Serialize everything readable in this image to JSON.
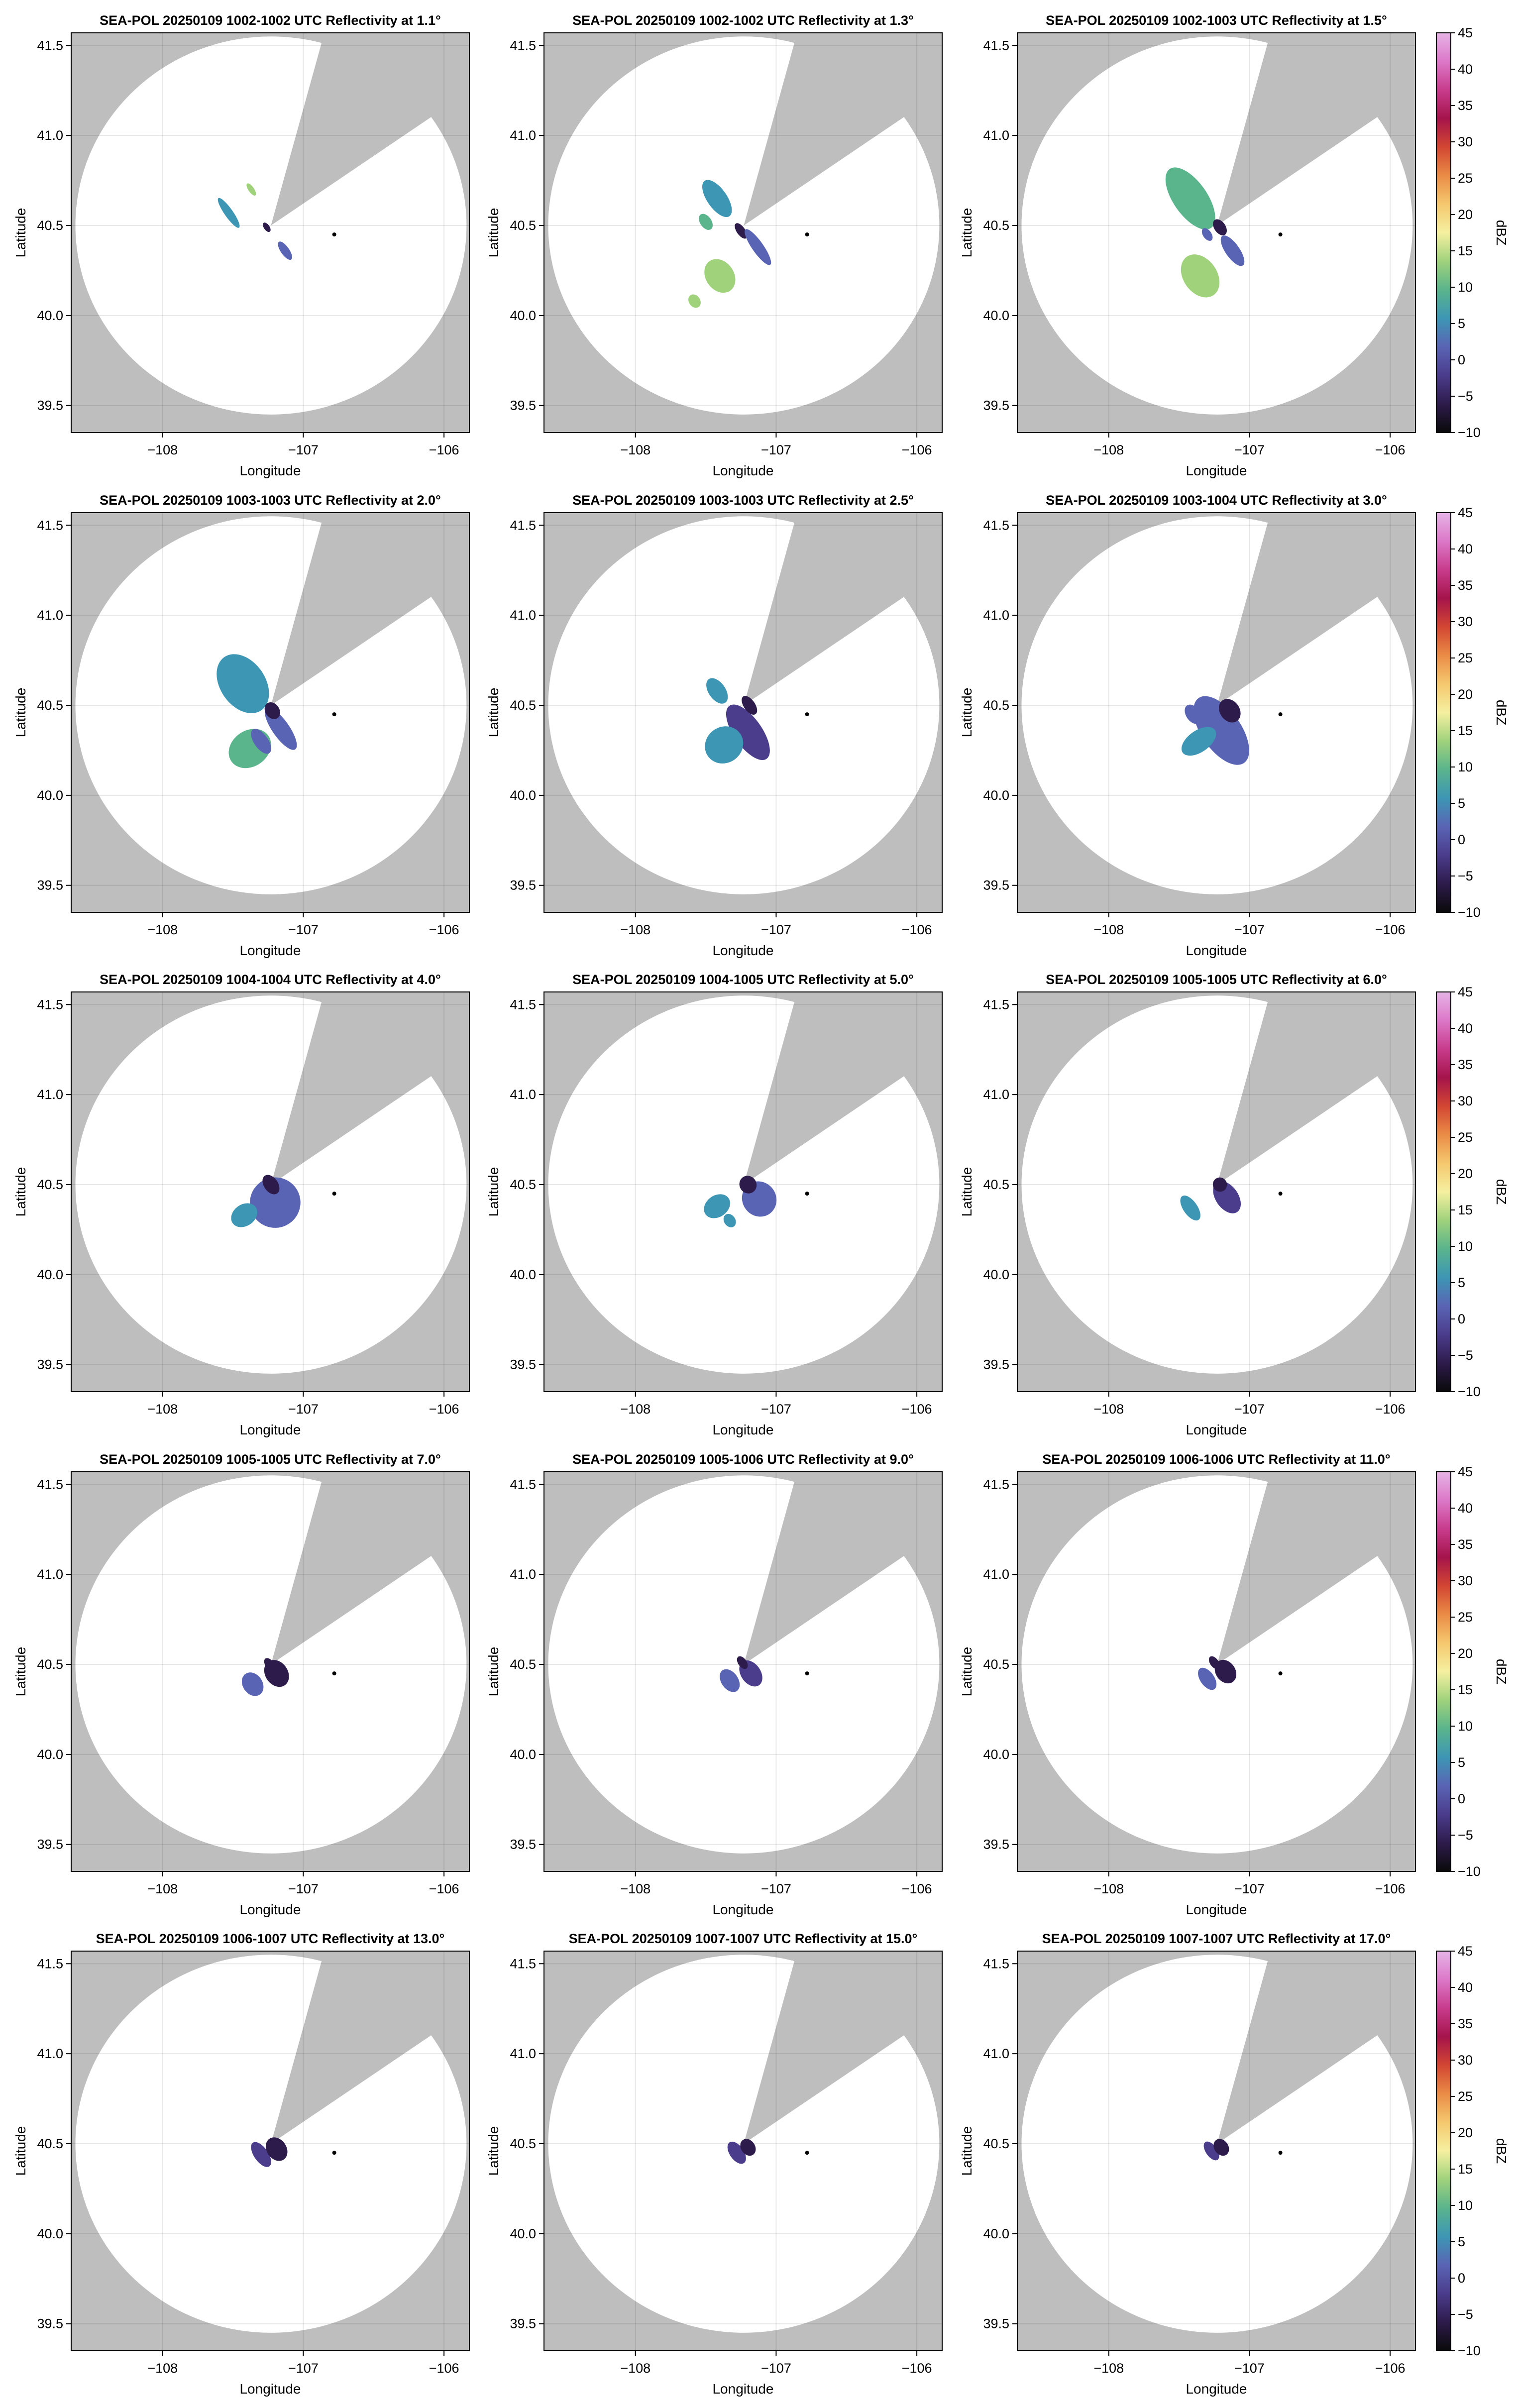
{
  "chart_data": {
    "type": "radar_ppi_grid",
    "colormap": [
      "#0a0a0a",
      "#2d1b4b",
      "#4b3c8c",
      "#5a64b4",
      "#3d96b4",
      "#5ab48c",
      "#a0d27c",
      "#f5f0a0",
      "#f5c86e",
      "#ea8c46",
      "#d24632",
      "#a5144b",
      "#c83c8c",
      "#dc78c8",
      "#e6b4e6",
      "#4b1e5a"
    ],
    "colorbar": {
      "label": "dBZ",
      "range": [
        -10,
        45
      ],
      "ticks": [
        "−10",
        "−5",
        "0",
        "5",
        "10",
        "15",
        "20",
        "25",
        "30",
        "35",
        "40",
        "45"
      ]
    },
    "xlabel": "Longitude",
    "ylabel": "Latitude",
    "xlim": [
      -108.65,
      -105.82
    ],
    "ylim": [
      39.35,
      41.57
    ],
    "x_ticks": [
      {
        "value": -108,
        "label": "−108"
      },
      {
        "value": -107,
        "label": "−107"
      },
      {
        "value": -106,
        "label": "−106"
      }
    ],
    "y_ticks": [
      {
        "value": 39.5,
        "label": "39.5"
      },
      {
        "value": 40.0,
        "label": "40.0"
      },
      {
        "value": 40.5,
        "label": "40.5"
      },
      {
        "value": 41.0,
        "label": "41.0"
      },
      {
        "value": 41.5,
        "label": "41.5"
      }
    ],
    "grid": true,
    "radar_site": {
      "lon": -107.23,
      "lat": 40.5,
      "range_deg_lat": 1.05,
      "range_deg_lon": 1.39
    },
    "blocked_sector_deg": [
      15,
      55
    ],
    "marker": {
      "lon": -106.78,
      "lat": 40.45
    },
    "panels": [
      {
        "title": "SEA-POL 20250109 1002-1002 UTC Reflectivity at 1.1°",
        "echoes": [
          {
            "lon": -107.53,
            "lat": 40.57,
            "w": 0.03,
            "h": 0.1,
            "dbz": 8
          },
          {
            "lon": -107.37,
            "lat": 40.7,
            "w": 0.02,
            "h": 0.04,
            "dbz": 12
          },
          {
            "lon": -107.26,
            "lat": 40.49,
            "w": 0.02,
            "h": 0.03,
            "dbz": -6
          },
          {
            "lon": -107.13,
            "lat": 40.36,
            "w": 0.03,
            "h": 0.06,
            "dbz": 1
          }
        ]
      },
      {
        "title": "SEA-POL 20250109 1002-1002 UTC Reflectivity at 1.3°",
        "echoes": [
          {
            "lon": -107.42,
            "lat": 40.65,
            "w": 0.07,
            "h": 0.12,
            "dbz": 8
          },
          {
            "lon": -107.5,
            "lat": 40.52,
            "w": 0.04,
            "h": 0.05,
            "dbz": 9
          },
          {
            "lon": -107.4,
            "lat": 40.22,
            "w": 0.1,
            "h": 0.1,
            "dbz": 14
          },
          {
            "lon": -107.25,
            "lat": 40.47,
            "w": 0.03,
            "h": 0.05,
            "dbz": -6
          },
          {
            "lon": -107.13,
            "lat": 40.38,
            "w": 0.04,
            "h": 0.12,
            "dbz": 2
          },
          {
            "lon": -107.58,
            "lat": 40.08,
            "w": 0.04,
            "h": 0.04,
            "dbz": 13
          }
        ]
      },
      {
        "title": "SEA-POL 20250109 1002-1003 UTC Reflectivity at 1.5°",
        "echoes": [
          {
            "lon": -107.42,
            "lat": 40.65,
            "w": 0.12,
            "h": 0.2,
            "dbz": 9
          },
          {
            "lon": -107.35,
            "lat": 40.22,
            "w": 0.12,
            "h": 0.13,
            "dbz": 13
          },
          {
            "lon": -107.21,
            "lat": 40.49,
            "w": 0.04,
            "h": 0.05,
            "dbz": -5
          },
          {
            "lon": -107.12,
            "lat": 40.36,
            "w": 0.05,
            "h": 0.1,
            "dbz": 1
          },
          {
            "lon": -107.3,
            "lat": 40.45,
            "w": 0.03,
            "h": 0.04,
            "dbz": 4
          }
        ]
      },
      {
        "title": "SEA-POL 20250109 1003-1003 UTC Reflectivity at 2.0°",
        "echoes": [
          {
            "lon": -107.43,
            "lat": 40.62,
            "w": 0.16,
            "h": 0.18,
            "dbz": 7
          },
          {
            "lon": -107.38,
            "lat": 40.26,
            "w": 0.16,
            "h": 0.1,
            "dbz": 9
          },
          {
            "lon": -107.16,
            "lat": 40.37,
            "w": 0.06,
            "h": 0.14,
            "dbz": 1
          },
          {
            "lon": -107.22,
            "lat": 40.47,
            "w": 0.05,
            "h": 0.05,
            "dbz": -5
          },
          {
            "lon": -107.3,
            "lat": 40.3,
            "w": 0.05,
            "h": 0.08,
            "dbz": 2
          }
        ]
      },
      {
        "title": "SEA-POL 20250109 1003-1003 UTC Reflectivity at 2.5°",
        "echoes": [
          {
            "lon": -107.2,
            "lat": 40.35,
            "w": 0.1,
            "h": 0.18,
            "dbz": 0
          },
          {
            "lon": -107.37,
            "lat": 40.28,
            "w": 0.14,
            "h": 0.1,
            "dbz": 7
          },
          {
            "lon": -107.42,
            "lat": 40.58,
            "w": 0.06,
            "h": 0.08,
            "dbz": 8
          },
          {
            "lon": -107.19,
            "lat": 40.5,
            "w": 0.04,
            "h": 0.06,
            "dbz": -6
          }
        ]
      },
      {
        "title": "SEA-POL 20250109 1003-1004 UTC Reflectivity at 3.0°",
        "echoes": [
          {
            "lon": -107.2,
            "lat": 40.36,
            "w": 0.14,
            "h": 0.22,
            "dbz": 1
          },
          {
            "lon": -107.36,
            "lat": 40.3,
            "w": 0.14,
            "h": 0.06,
            "dbz": 6
          },
          {
            "lon": -107.14,
            "lat": 40.47,
            "w": 0.07,
            "h": 0.07,
            "dbz": -5
          },
          {
            "lon": -107.4,
            "lat": 40.45,
            "w": 0.05,
            "h": 0.06,
            "dbz": 2
          }
        ]
      },
      {
        "title": "SEA-POL 20250109 1004-1004 UTC Reflectivity at 4.0°",
        "echoes": [
          {
            "lon": -107.2,
            "lat": 40.4,
            "w": 0.18,
            "h": 0.14,
            "dbz": 1
          },
          {
            "lon": -107.42,
            "lat": 40.33,
            "w": 0.1,
            "h": 0.06,
            "dbz": 5
          },
          {
            "lon": -107.23,
            "lat": 40.5,
            "w": 0.05,
            "h": 0.06,
            "dbz": -6
          }
        ]
      },
      {
        "title": "SEA-POL 20250109 1004-1005 UTC Reflectivity at 5.0°",
        "echoes": [
          {
            "lon": -107.12,
            "lat": 40.42,
            "w": 0.12,
            "h": 0.1,
            "dbz": 1
          },
          {
            "lon": -107.42,
            "lat": 40.38,
            "w": 0.1,
            "h": 0.06,
            "dbz": 6
          },
          {
            "lon": -107.2,
            "lat": 40.5,
            "w": 0.06,
            "h": 0.05,
            "dbz": -6
          },
          {
            "lon": -107.33,
            "lat": 40.3,
            "w": 0.04,
            "h": 0.04,
            "dbz": 5
          }
        ]
      },
      {
        "title": "SEA-POL 20250109 1005-1005 UTC Reflectivity at 6.0°",
        "echoes": [
          {
            "lon": -107.16,
            "lat": 40.43,
            "w": 0.08,
            "h": 0.1,
            "dbz": 0
          },
          {
            "lon": -107.42,
            "lat": 40.37,
            "w": 0.05,
            "h": 0.08,
            "dbz": 5
          },
          {
            "lon": -107.21,
            "lat": 40.5,
            "w": 0.05,
            "h": 0.04,
            "dbz": -6
          }
        ]
      },
      {
        "title": "SEA-POL 20250109 1005-1005 UTC Reflectivity at 7.0°",
        "echoes": [
          {
            "lon": -107.36,
            "lat": 40.39,
            "w": 0.07,
            "h": 0.07,
            "dbz": 3
          },
          {
            "lon": -107.19,
            "lat": 40.45,
            "w": 0.08,
            "h": 0.08,
            "dbz": -3
          },
          {
            "lon": -107.24,
            "lat": 40.5,
            "w": 0.03,
            "h": 0.04,
            "dbz": -6
          }
        ]
      },
      {
        "title": "SEA-POL 20250109 1005-1006 UTC Reflectivity at 9.0°",
        "echoes": [
          {
            "lon": -107.33,
            "lat": 40.41,
            "w": 0.06,
            "h": 0.07,
            "dbz": 2
          },
          {
            "lon": -107.18,
            "lat": 40.45,
            "w": 0.07,
            "h": 0.08,
            "dbz": -2
          },
          {
            "lon": -107.24,
            "lat": 40.51,
            "w": 0.03,
            "h": 0.04,
            "dbz": -6
          }
        ]
      },
      {
        "title": "SEA-POL 20250109 1006-1006 UTC Reflectivity at 11.0°",
        "echoes": [
          {
            "lon": -107.3,
            "lat": 40.42,
            "w": 0.05,
            "h": 0.07,
            "dbz": 1
          },
          {
            "lon": -107.17,
            "lat": 40.46,
            "w": 0.07,
            "h": 0.07,
            "dbz": -3
          },
          {
            "lon": -107.25,
            "lat": 40.51,
            "w": 0.03,
            "h": 0.04,
            "dbz": -6
          }
        ]
      },
      {
        "title": "SEA-POL 20250109 1006-1007 UTC Reflectivity at 13.0°",
        "echoes": [
          {
            "lon": -107.3,
            "lat": 40.44,
            "w": 0.05,
            "h": 0.08,
            "dbz": 0
          },
          {
            "lon": -107.19,
            "lat": 40.47,
            "w": 0.07,
            "h": 0.07,
            "dbz": -4
          }
        ]
      },
      {
        "title": "SEA-POL 20250109 1007-1007 UTC Reflectivity at 15.0°",
        "echoes": [
          {
            "lon": -107.28,
            "lat": 40.45,
            "w": 0.05,
            "h": 0.07,
            "dbz": -1
          },
          {
            "lon": -107.2,
            "lat": 40.48,
            "w": 0.05,
            "h": 0.05,
            "dbz": -4
          }
        ]
      },
      {
        "title": "SEA-POL 20250109 1007-1007 UTC Reflectivity at 17.0°",
        "echoes": [
          {
            "lon": -107.27,
            "lat": 40.46,
            "w": 0.04,
            "h": 0.06,
            "dbz": -1
          },
          {
            "lon": -107.2,
            "lat": 40.48,
            "w": 0.05,
            "h": 0.05,
            "dbz": -4
          }
        ]
      }
    ]
  }
}
